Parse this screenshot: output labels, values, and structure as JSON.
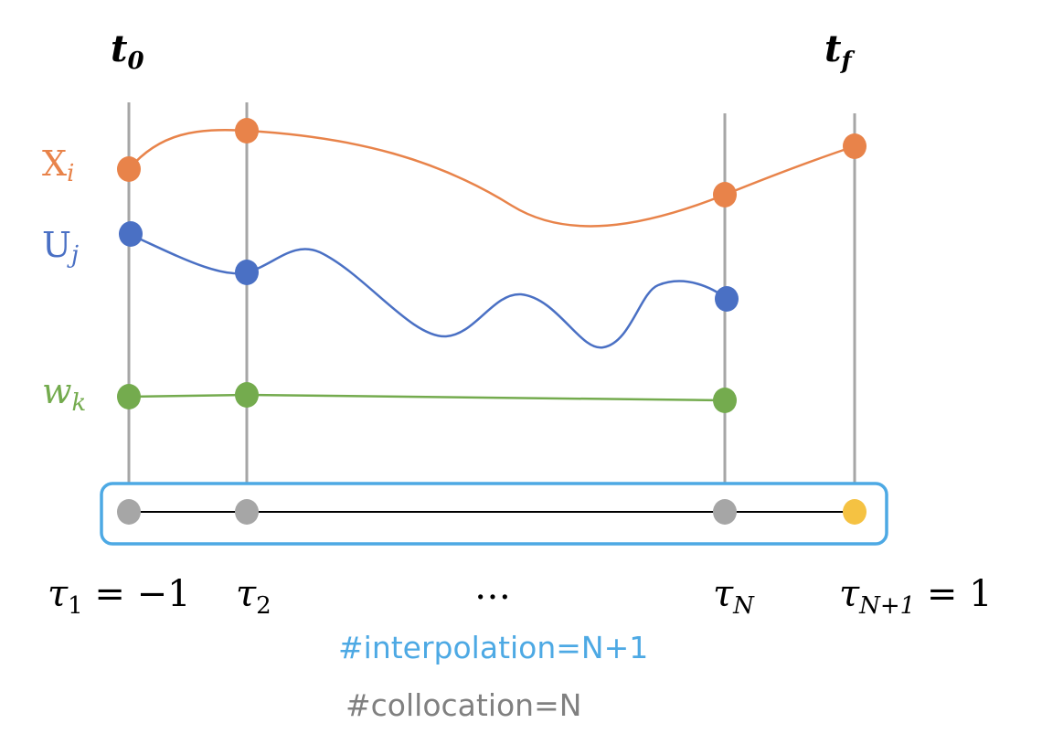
{
  "labels": {
    "t0": {
      "base": "t",
      "sub": "0"
    },
    "tf": {
      "base": "t",
      "sub": "f"
    },
    "xi": {
      "base": "X",
      "sub": "i"
    },
    "uj": {
      "base": "U",
      "sub": "j"
    },
    "wk": {
      "base": "w",
      "sub": "k"
    },
    "tau1": {
      "base": "τ",
      "sub": "1",
      "rest": " = −1"
    },
    "tau2": {
      "base": "τ",
      "sub": "2"
    },
    "ellipsis": "…",
    "tauN": {
      "base": "τ",
      "sub": "N"
    },
    "tauN1": {
      "base": "τ",
      "sub": "N+1",
      "rest": " = 1"
    },
    "interpolation_note": "#interpolation=N+1",
    "collocation_note": "#collocation=N"
  },
  "colors": {
    "state": "#E8834A",
    "control": "#4A70C4",
    "weight": "#74AB4E",
    "grid": "#A6A6A6",
    "node": "#A6A6A6",
    "final_node": "#F5C242",
    "box": "#4DA9E4",
    "axis": "#000000",
    "collocation_text": "#808080"
  }
}
